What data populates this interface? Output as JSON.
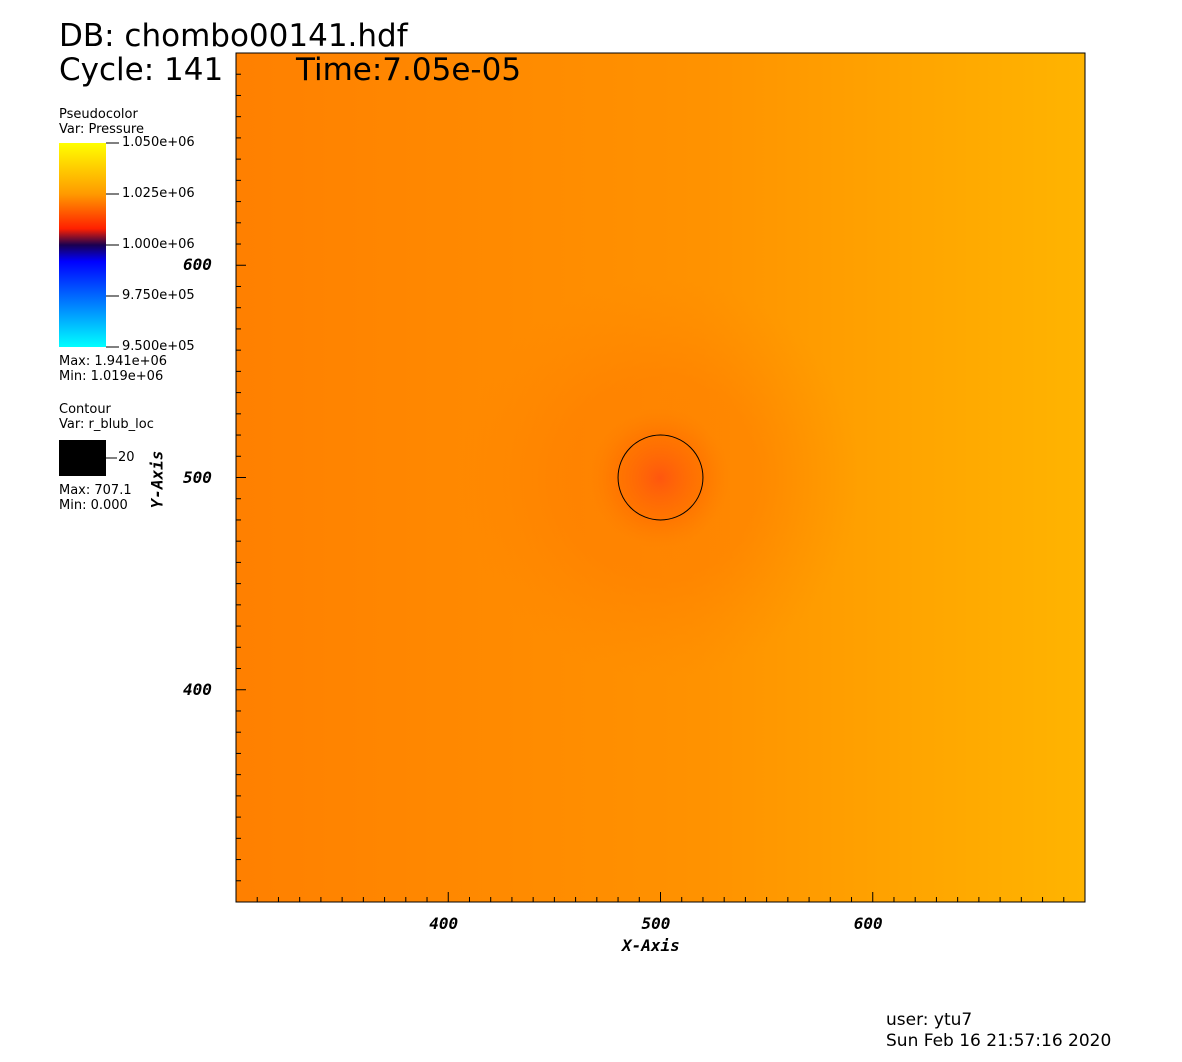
{
  "header": {
    "db": "DB: chombo00141.hdf",
    "cycle": "Cycle: 141",
    "time": "Time:7.05e-05"
  },
  "legend_pseudocolor": {
    "title": "Pseudocolor",
    "var": "Var: Pressure",
    "labels": [
      "1.050e+06",
      "1.025e+06",
      "1.000e+06",
      "9.750e+05",
      "9.500e+05"
    ],
    "max": "Max:  1.941e+06",
    "min": "Min:  1.019e+06",
    "colors": [
      "#ffff00",
      "#ff9a00",
      "#ff2000",
      "#1a0050",
      "#0000ff",
      "#00ffff"
    ]
  },
  "legend_contour": {
    "title": "Contour",
    "var": "Var: r_blub_loc",
    "level": "20",
    "max": "Max:  707.1",
    "min": "Min:  0.000"
  },
  "footer": {
    "user": "user: ytu7",
    "date": "Sun Feb 16 21:57:16 2020"
  },
  "chart_data": {
    "type": "heatmap",
    "xlabel": "X-Axis",
    "ylabel": "Y-Axis",
    "xlim": [
      300,
      700
    ],
    "ylim": [
      300,
      700
    ],
    "x_ticks": [
      400,
      500,
      600
    ],
    "y_ticks": [
      400,
      500,
      600
    ],
    "x_tick_labels": [
      "400",
      "500",
      "600"
    ],
    "y_tick_labels": [
      "400",
      "500",
      "600"
    ],
    "colors": {
      "left": "#ff8000",
      "right": "#ffb400",
      "center_spot": "#ff5a10",
      "ring": "#ff7000"
    },
    "contour_circle": {
      "cx": 500,
      "cy": 500,
      "r": 20,
      "color": "#000000"
    }
  }
}
